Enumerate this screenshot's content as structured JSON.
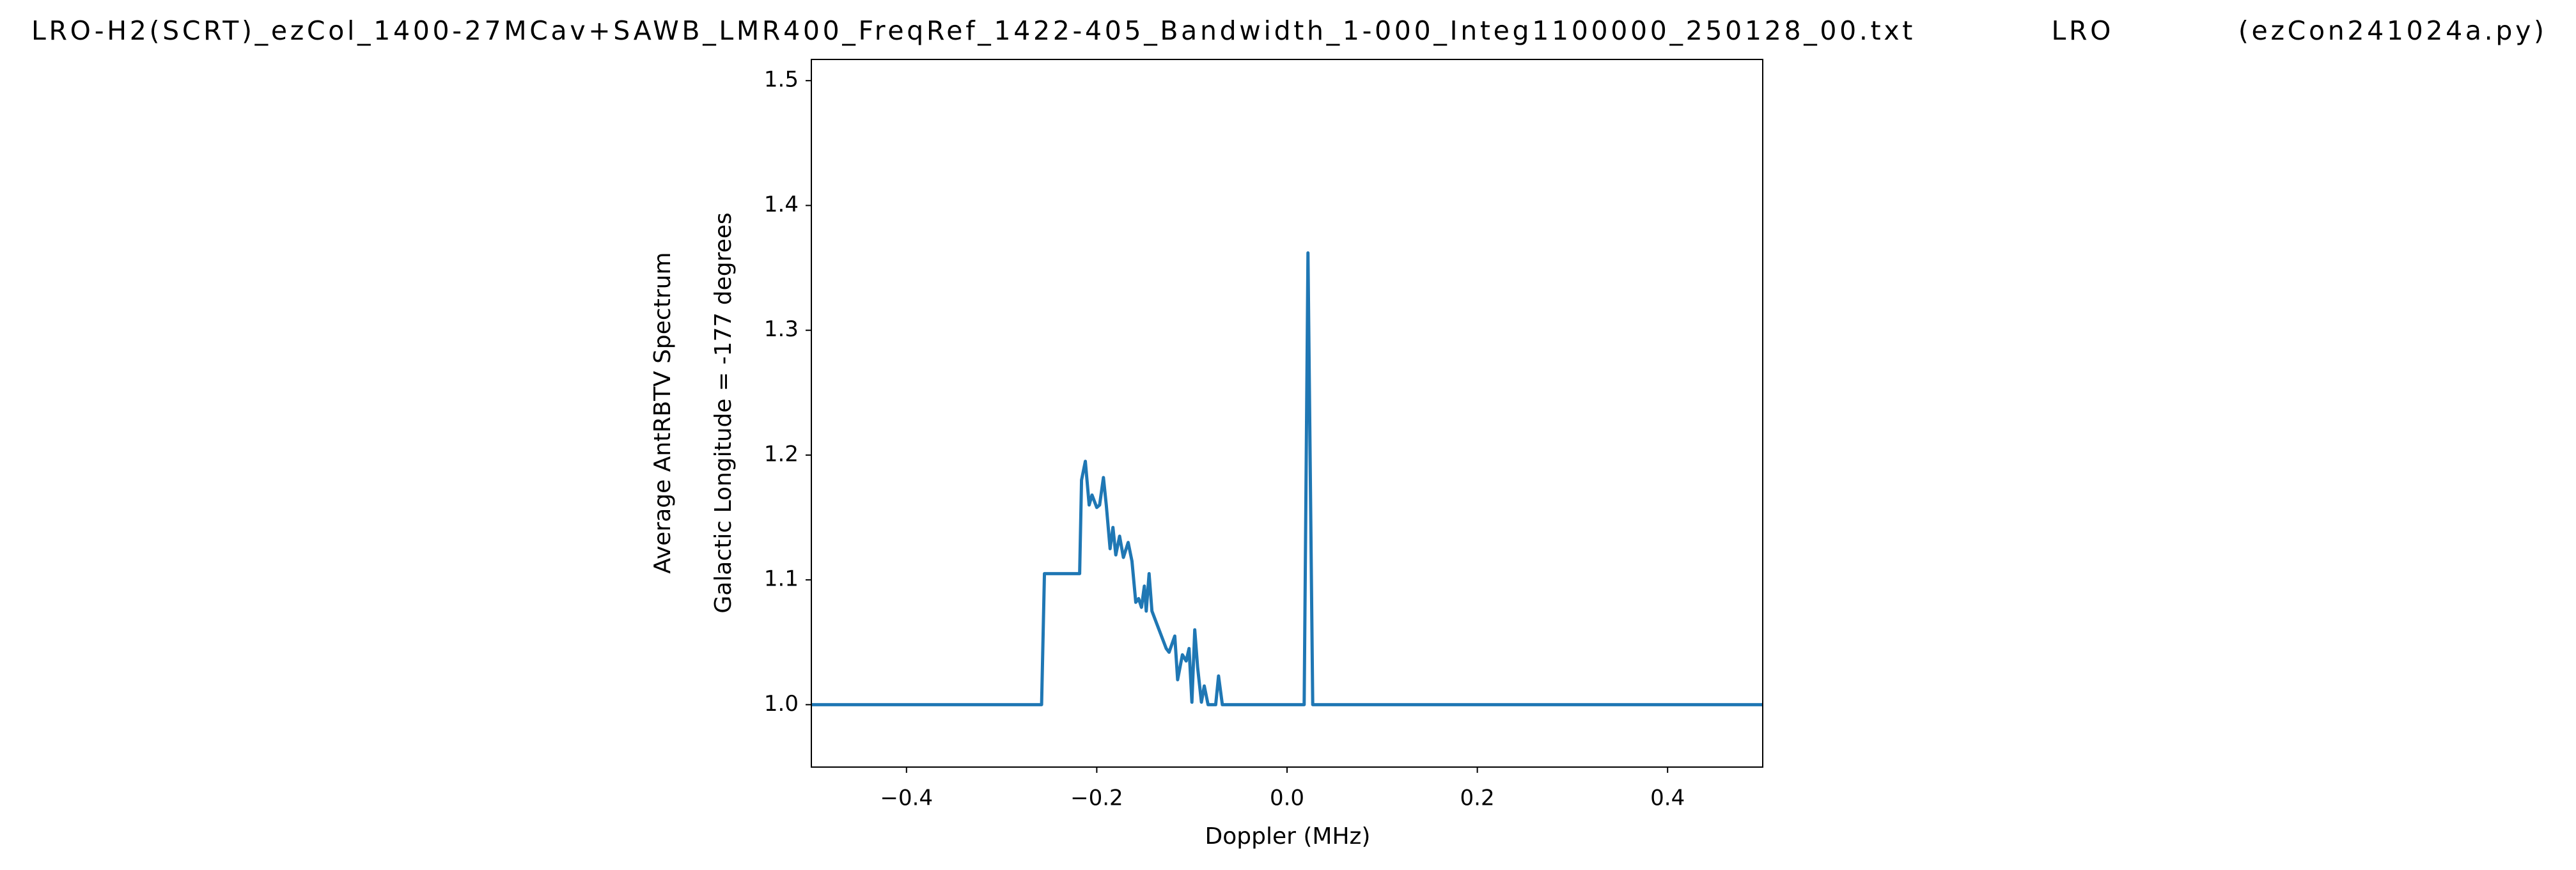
{
  "chart_data": {
    "type": "line",
    "title": "LRO-H2(SCRT)_ezCol_1400-27MCav+SAWB_LMR400_FreqRef_1422-405_Bandwidth_1-000_Integ1100000_250128_00.txt            LRO           (ezCon241024a.py)",
    "xlabel": "Doppler (MHz)",
    "ylabel": [
      "Average AntRBTV Spectrum",
      "Galactic Longitude = -177 degrees"
    ],
    "x": [
      -0.5,
      -0.258,
      -0.255,
      -0.218,
      -0.216,
      -0.212,
      -0.208,
      -0.205,
      -0.2,
      -0.197,
      -0.193,
      -0.19,
      -0.186,
      -0.183,
      -0.18,
      -0.176,
      -0.172,
      -0.167,
      -0.163,
      -0.159,
      -0.156,
      -0.153,
      -0.15,
      -0.148,
      -0.145,
      -0.142,
      -0.137,
      -0.132,
      -0.127,
      -0.124,
      -0.118,
      -0.115,
      -0.11,
      -0.106,
      -0.103,
      -0.1,
      -0.097,
      -0.094,
      -0.09,
      -0.087,
      -0.083,
      -0.075,
      -0.072,
      -0.068,
      0.018,
      0.022,
      0.027,
      0.5
    ],
    "series": [
      {
        "name": "spectrum",
        "color": "#1f77b4",
        "values": [
          1.0,
          1.0,
          1.105,
          1.105,
          1.18,
          1.195,
          1.16,
          1.168,
          1.158,
          1.16,
          1.182,
          1.16,
          1.125,
          1.142,
          1.12,
          1.135,
          1.118,
          1.13,
          1.115,
          1.082,
          1.085,
          1.078,
          1.095,
          1.075,
          1.105,
          1.075,
          1.065,
          1.055,
          1.045,
          1.042,
          1.055,
          1.02,
          1.04,
          1.035,
          1.045,
          1.002,
          1.06,
          1.03,
          1.002,
          1.015,
          1.0,
          1.0,
          1.023,
          1.0,
          1.0,
          1.362,
          1.0,
          1.0
        ]
      }
    ],
    "xlim": [
      -0.5,
      0.5
    ],
    "ylim": [
      0.95,
      1.517
    ],
    "xticks": [
      {
        "value": -0.4,
        "label": "−0.4"
      },
      {
        "value": -0.2,
        "label": "−0.2"
      },
      {
        "value": 0,
        "label": "0.0"
      },
      0.2,
      0.4
    ],
    "yticks": [
      {
        "value": 1,
        "label": "1.0"
      },
      1.1,
      1.2,
      1.3,
      1.4,
      1.5
    ],
    "grid": false
  }
}
